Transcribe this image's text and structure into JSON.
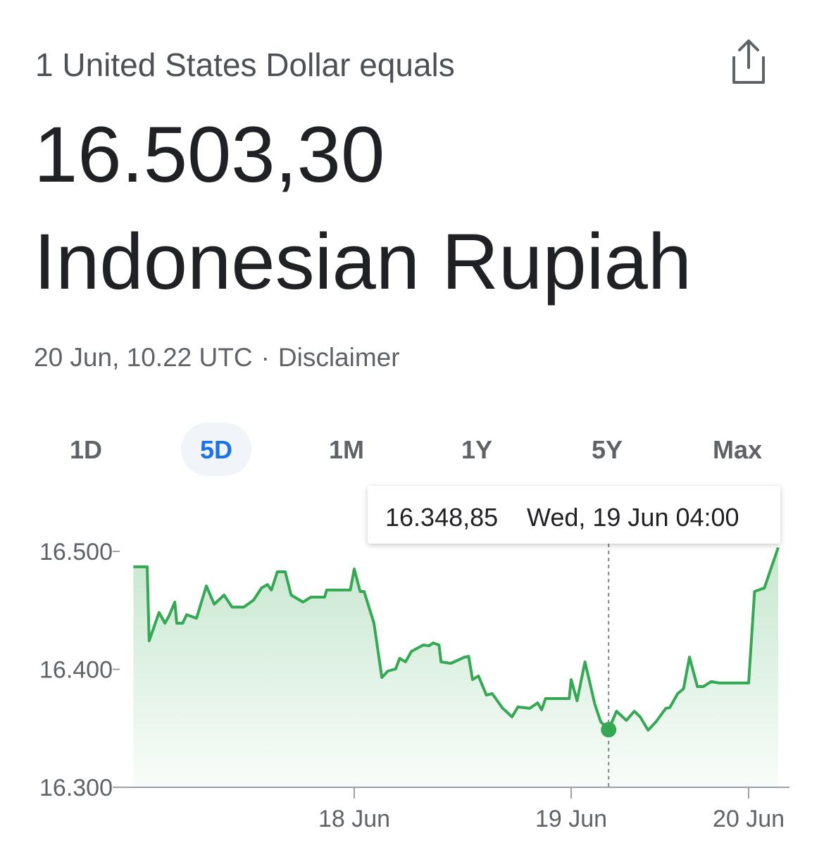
{
  "header": {
    "title": "1 United States Dollar equals",
    "amount": "16.503,30",
    "currency": "Indonesian Rupiah",
    "timestamp": "20 Jun, 10.22 UTC",
    "separator": "·",
    "disclaimer": "Disclaimer"
  },
  "tabs": {
    "items": [
      "1D",
      "5D",
      "1M",
      "1Y",
      "5Y",
      "Max"
    ],
    "selected": "5D"
  },
  "chart_data": {
    "type": "line",
    "x": [
      -0.12,
      -0.05,
      -0.04,
      0.01,
      0.04,
      0.06,
      0.09,
      0.1,
      0.13,
      0.15,
      0.2,
      0.25,
      0.29,
      0.34,
      0.38,
      0.44,
      0.49,
      0.53,
      0.56,
      0.58,
      0.61,
      0.65,
      0.68,
      0.74,
      0.78,
      0.85,
      0.86,
      0.98,
      1.0,
      1.03,
      1.05,
      1.1,
      1.14,
      1.17,
      1.21,
      1.23,
      1.26,
      1.29,
      1.35,
      1.38,
      1.4,
      1.43,
      1.44,
      1.49,
      1.56,
      1.58,
      1.6,
      1.63,
      1.67,
      1.7,
      1.75,
      1.8,
      1.83,
      1.89,
      1.93,
      1.95,
      1.97,
      2.09,
      2.1,
      2.13,
      2.17,
      2.22,
      2.25,
      2.29,
      2.33,
      2.38,
      2.42,
      2.45,
      2.49,
      2.53,
      2.58,
      2.6,
      2.64,
      2.67,
      2.7,
      2.74,
      2.77,
      2.81,
      2.85,
      3.0,
      3.03,
      3.08,
      3.11,
      3.15
    ],
    "series": [
      {
        "color": "#34a853",
        "values": [
          16486.9,
          16486.9,
          16424.2,
          16448.1,
          16439.1,
          16445.1,
          16457.0,
          16439.1,
          16439.1,
          16446.3,
          16443.3,
          16470.7,
          16455.2,
          16463.0,
          16452.8,
          16452.8,
          16458.8,
          16469.0,
          16471.9,
          16467.2,
          16482.7,
          16482.7,
          16463.0,
          16457.0,
          16461.2,
          16461.2,
          16467.2,
          16467.2,
          16485.1,
          16466.0,
          16466.0,
          16439.1,
          16393.1,
          16398.5,
          16400.3,
          16409.3,
          16406.3,
          16415.2,
          16420.6,
          16420.0,
          16422.4,
          16420.6,
          16406.3,
          16405.1,
          16410.4,
          16411.0,
          16391.3,
          16394.3,
          16378.2,
          16379.4,
          16367.5,
          16359.7,
          16368.1,
          16366.9,
          16371.6,
          16365.7,
          16375.2,
          16375.2,
          16391.3,
          16373.4,
          16406.3,
          16370.4,
          16355.5,
          16348.85,
          16364.5,
          16356.7,
          16364.5,
          16359.7,
          16348.4,
          16355.5,
          16366.9,
          16367.5,
          16379.4,
          16383.6,
          16410.4,
          16385.4,
          16385.4,
          16389.6,
          16388.4,
          16388.4,
          16466.0,
          16469.0,
          16483.9,
          16503.3
        ]
      }
    ],
    "xlim": [
      -0.2,
      3.2
    ],
    "xticks": [
      {
        "value": 1.0,
        "label": "18 Jun"
      },
      {
        "value": 2.1,
        "label": "19 Jun"
      },
      {
        "value": 3.0,
        "label": "20 Jun"
      }
    ],
    "ylim": [
      16300,
      16500
    ],
    "yticks": [
      {
        "value": 16300,
        "label": "16.300"
      },
      {
        "value": 16400,
        "label": "16.400"
      },
      {
        "value": 16500,
        "label": "16.500"
      }
    ],
    "area_fill": true,
    "tooltip": {
      "x": 2.29,
      "value": 16348.85,
      "value_label": "16.348,85",
      "date": "Wed, 19 Jun 04:00"
    }
  }
}
